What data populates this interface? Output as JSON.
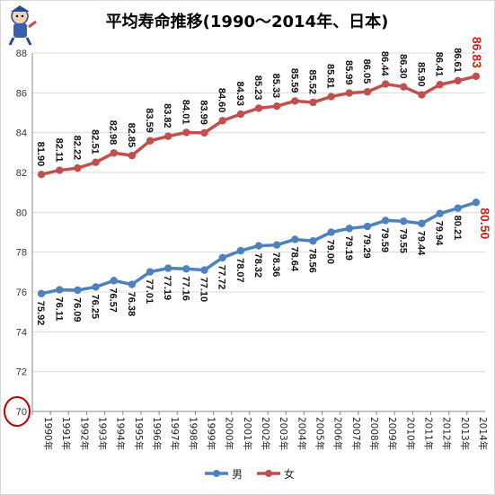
{
  "chart_data": {
    "type": "line",
    "title": "平均寿命推移(1990～2014年、日本)",
    "categories": [
      "1990年",
      "1991年",
      "1992年",
      "1993年",
      "1994年",
      "1995年",
      "1996年",
      "1997年",
      "1998年",
      "1999年",
      "2000年",
      "2001年",
      "2002年",
      "2003年",
      "2004年",
      "2005年",
      "2006年",
      "2007年",
      "2008年",
      "2009年",
      "2010年",
      "2011年",
      "2012年",
      "2013年",
      "2014年"
    ],
    "y_ticks": [
      "70",
      "72",
      "74",
      "76",
      "78",
      "80",
      "82",
      "84",
      "86",
      "88"
    ],
    "ylim": [
      70,
      88
    ],
    "grid": true,
    "legend_position": "bottom",
    "series": [
      {
        "name": "男",
        "color": "#4f81bd",
        "values": [
          75.92,
          76.11,
          76.09,
          76.25,
          76.57,
          76.38,
          77.01,
          77.19,
          77.16,
          77.1,
          77.72,
          78.07,
          78.32,
          78.36,
          78.64,
          78.56,
          79.0,
          79.19,
          79.29,
          79.59,
          79.55,
          79.44,
          79.94,
          80.21,
          80.5
        ],
        "labels": [
          "75.92",
          "76.11",
          "76.09",
          "76.25",
          "76.57",
          "76.38",
          "77.01",
          "77.19",
          "77.16",
          "77.10",
          "77.72",
          "78.07",
          "78.32",
          "78.36",
          "78.64",
          "78.56",
          "79.00",
          "79.19",
          "79.29",
          "79.59",
          "79.55",
          "79.44",
          "79.94",
          "80.21",
          "80.50"
        ]
      },
      {
        "name": "女",
        "color": "#c0504d",
        "values": [
          81.9,
          82.11,
          82.22,
          82.51,
          82.98,
          82.85,
          83.59,
          83.82,
          84.01,
          83.99,
          84.6,
          84.93,
          85.23,
          85.33,
          85.59,
          85.52,
          85.81,
          85.99,
          86.05,
          86.44,
          86.3,
          85.9,
          86.41,
          86.61,
          86.83
        ],
        "labels": [
          "81.90",
          "82.11",
          "82.22",
          "82.51",
          "82.98",
          "82.85",
          "83.59",
          "83.82",
          "84.01",
          "83.99",
          "84.60",
          "84.93",
          "85.23",
          "85.33",
          "85.59",
          "85.52",
          "85.81",
          "85.99",
          "86.05",
          "86.44",
          "86.30",
          "85.90",
          "86.41",
          "86.61",
          "86.83"
        ]
      }
    ],
    "annotations": {
      "highlight_last_color": "#c0281c",
      "axis_min_circle_color": "#c00000"
    }
  },
  "logo": {
    "description_icon": "mascot-logo-icon"
  }
}
